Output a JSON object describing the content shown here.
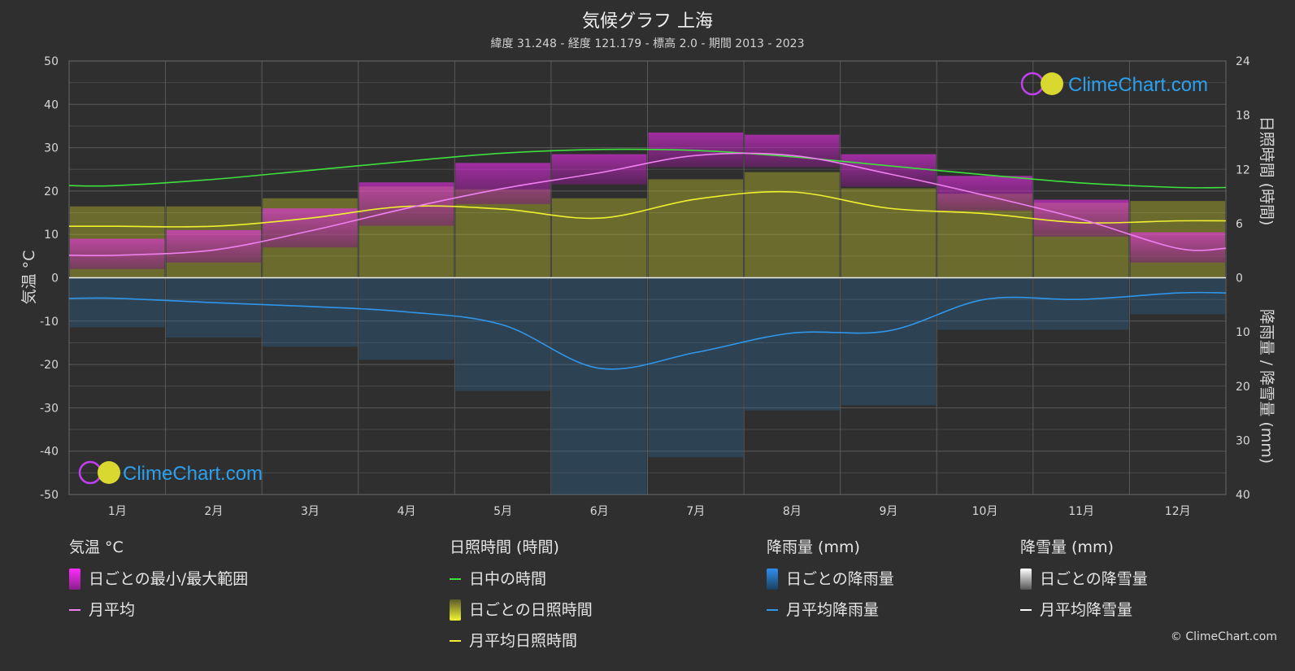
{
  "header": {
    "title": "気候グラフ 上海",
    "subtitle": "緯度 31.248 - 経度 121.179 - 標高 2.0 - 期間 2013 - 2023"
  },
  "watermark": {
    "text": "ClimeChart.com",
    "copyright": "© ClimeChart.com"
  },
  "colors": {
    "background": "#2f2f2f",
    "daylight": "#3ee03e",
    "sunshine_line": "#f0f030",
    "sunshine_fill": "#b5b52e",
    "temp_line": "#ee80ee",
    "temp_range": "#d23cd2",
    "rain_line": "#2f96ea",
    "rain_fill": "#2a6fa8",
    "snow_line": "#ffffff"
  },
  "chart_data": {
    "type": "area",
    "categories": [
      "1月",
      "2月",
      "3月",
      "4月",
      "5月",
      "6月",
      "7月",
      "8月",
      "9月",
      "10月",
      "11月",
      "12月"
    ],
    "axes": {
      "left": {
        "label": "気温 °C",
        "ylim": [
          -50,
          50
        ],
        "ticks": [
          "50",
          "40",
          "30",
          "20",
          "10",
          "0",
          "-10",
          "-20",
          "-30",
          "-40",
          "-50"
        ]
      },
      "right_top": {
        "label": "日照時間 (時間)",
        "ylim": [
          0,
          24
        ],
        "ticks": [
          "24",
          "18",
          "12",
          "6",
          "0"
        ]
      },
      "right_bottom": {
        "label": "降雨量 / 降雪量 (mm)",
        "ylim": [
          0,
          40
        ],
        "ticks": [
          "10",
          "20",
          "30",
          "40"
        ]
      }
    },
    "grid": true,
    "series": [
      {
        "name": "日中の時間",
        "axis": "right_top",
        "values": [
          10.2,
          10.9,
          11.9,
          12.9,
          13.8,
          14.2,
          14.1,
          13.4,
          12.4,
          11.4,
          10.5,
          10.0
        ]
      },
      {
        "name": "月平均日照時間",
        "axis": "right_top",
        "values": [
          5.7,
          5.7,
          6.6,
          7.9,
          7.6,
          6.6,
          8.7,
          9.5,
          7.7,
          7.1,
          6.1,
          6.3
        ]
      },
      {
        "name": "月平均",
        "axis": "left",
        "values": [
          5.2,
          6.4,
          10.8,
          16.0,
          20.6,
          24.2,
          28.2,
          28.2,
          24.0,
          19.0,
          13.5,
          6.8
        ]
      },
      {
        "name": "月平均降雨量",
        "axis": "right_bottom",
        "values": [
          3.8,
          4.6,
          5.3,
          6.3,
          8.7,
          16.7,
          13.8,
          10.2,
          9.8,
          4.0,
          4.0,
          2.8
        ]
      },
      {
        "name": "日ごとの最小/最大範囲",
        "axis": "left",
        "min": [
          2.0,
          3.5,
          7.0,
          12.0,
          17.0,
          21.5,
          25.5,
          25.5,
          21.0,
          15.5,
          9.5,
          3.5
        ],
        "max": [
          9.0,
          11.0,
          16.0,
          22.0,
          26.5,
          28.5,
          33.5,
          33.0,
          28.5,
          23.5,
          18.0,
          10.5
        ]
      },
      {
        "name": "日ごとの日照時間",
        "axis": "right_top",
        "values": [
          5.7,
          5.7,
          6.6,
          7.9,
          7.6,
          6.6,
          8.7,
          9.5,
          7.7,
          7.1,
          6.1,
          6.3
        ]
      },
      {
        "name": "日ごとの降雨量",
        "axis": "right_bottom",
        "values": [
          3.8,
          4.6,
          5.3,
          6.3,
          8.7,
          16.7,
          13.8,
          10.2,
          9.8,
          4.0,
          4.0,
          2.8
        ]
      },
      {
        "name": "月平均降雪量",
        "axis": "right_bottom",
        "values": [
          0,
          0,
          0,
          0,
          0,
          0,
          0,
          0,
          0,
          0,
          0,
          0
        ]
      }
    ]
  },
  "legend": {
    "groups": [
      {
        "title": "気温 °C",
        "items": [
          {
            "label": "日ごとの最小/最大範囲"
          },
          {
            "label": "月平均"
          }
        ]
      },
      {
        "title": "日照時間 (時間)",
        "items": [
          {
            "label": "日中の時間"
          },
          {
            "label": "日ごとの日照時間"
          },
          {
            "label": "月平均日照時間"
          }
        ]
      },
      {
        "title": "降雨量 (mm)",
        "items": [
          {
            "label": "日ごとの降雨量"
          },
          {
            "label": "月平均降雨量"
          }
        ]
      },
      {
        "title": "降雪量 (mm)",
        "items": [
          {
            "label": "日ごとの降雪量"
          },
          {
            "label": "月平均降雪量"
          }
        ]
      }
    ]
  }
}
